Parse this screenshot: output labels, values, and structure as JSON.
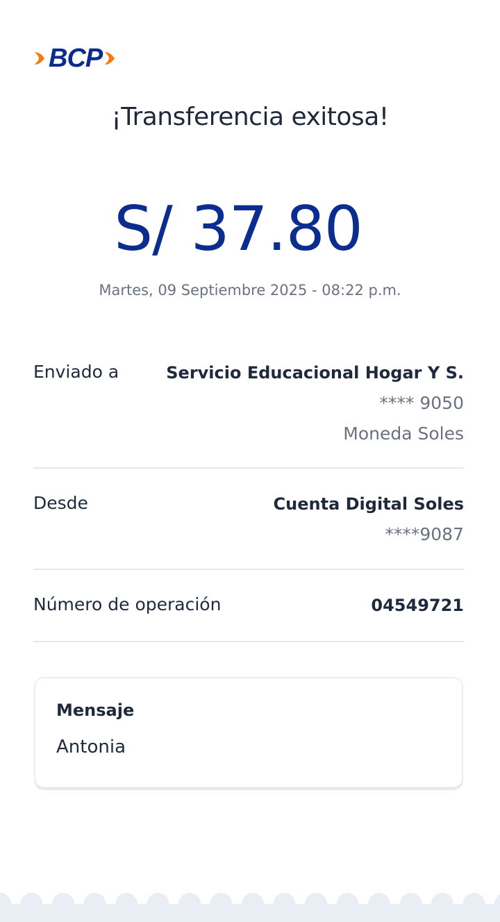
{
  "brand": {
    "logo_text": "BCP",
    "primary_color": "#0b2d8f",
    "accent_color": "#f47b14"
  },
  "header": {
    "title": "¡Transferencia exitosa!"
  },
  "transfer": {
    "amount": "S/ 37.80",
    "datetime": "Martes, 09 Septiembre 2025 - 08:22 p.m."
  },
  "details": {
    "sent_to": {
      "label": "Enviado a",
      "name": "Servicio Educacional Hogar Y S.",
      "account": "**** 9050",
      "currency": "Moneda Soles"
    },
    "from": {
      "label": "Desde",
      "name": "Cuenta Digital Soles",
      "account": "****9087"
    },
    "operation": {
      "label": "Número de operación",
      "value": "04549721"
    }
  },
  "message": {
    "title": "Mensaje",
    "body": "Antonia"
  }
}
